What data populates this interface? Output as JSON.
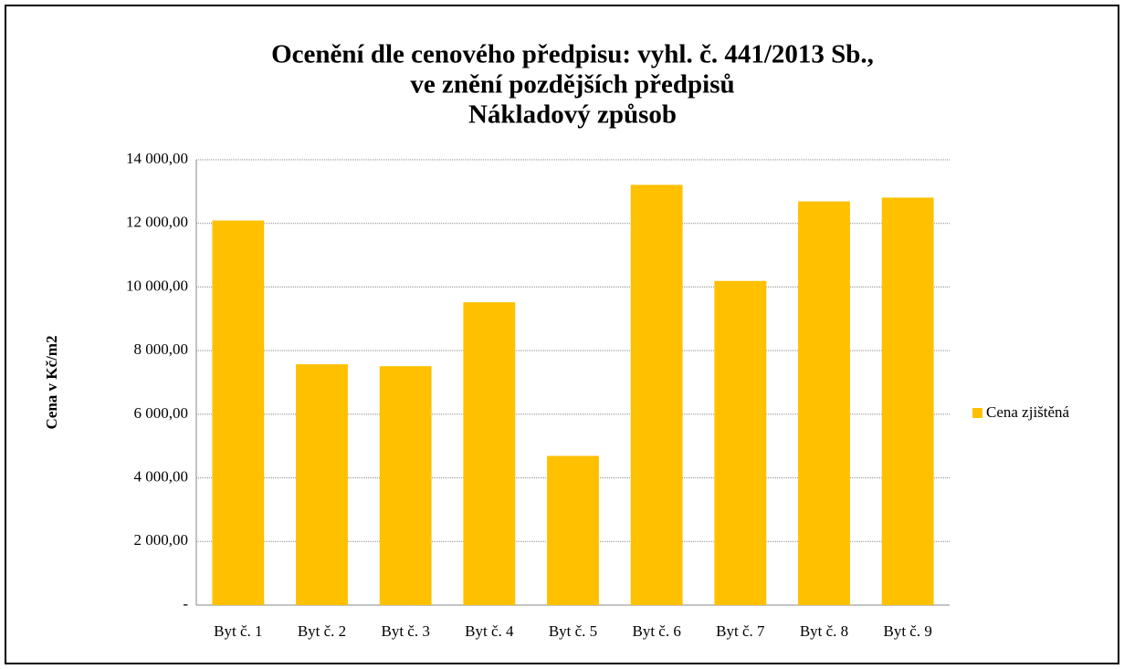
{
  "chart_data": {
    "type": "bar",
    "title": [
      "Ocenění dle cenového předpisu: vyhl. č. 441/2013 Sb.,",
      "ve znění pozdějších předpisů",
      "Nákladový způsob"
    ],
    "ylabel": "Cena v Kč/m2",
    "categories": [
      "Byt č. 1",
      "Byt č. 2",
      "Byt č. 3",
      "Byt č. 4",
      "Byt č. 5",
      "Byt č. 6",
      "Byt č. 7",
      "Byt č. 8",
      "Byt č. 9"
    ],
    "series": [
      {
        "name": "Cena zjištěná",
        "color": "#ffc000",
        "values": [
          12090,
          7570,
          7510,
          9520,
          4690,
          13210,
          10190,
          12690,
          12810
        ]
      }
    ],
    "ylim": [
      0,
      14000
    ],
    "yticks": [
      {
        "value": 0,
        "label": "-"
      },
      {
        "value": 2000,
        "label": "2 000,00"
      },
      {
        "value": 4000,
        "label": "4 000,00"
      },
      {
        "value": 6000,
        "label": "6 000,00"
      },
      {
        "value": 8000,
        "label": "8 000,00"
      },
      {
        "value": 10000,
        "label": "10 000,00"
      },
      {
        "value": 12000,
        "label": "12 000,00"
      },
      {
        "value": 14000,
        "label": "14 000,00"
      }
    ],
    "grid": true,
    "legend": "right"
  }
}
